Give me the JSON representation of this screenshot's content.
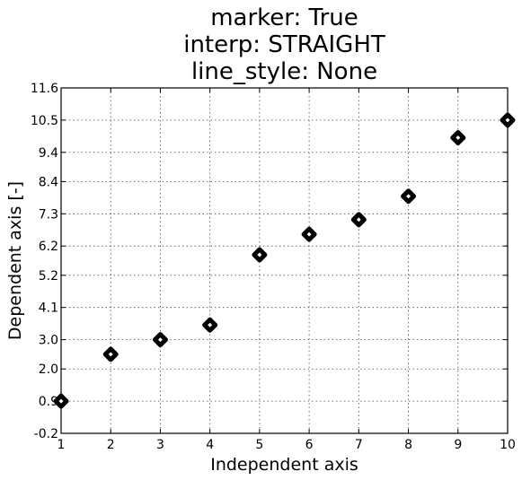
{
  "chart_data": {
    "type": "scatter",
    "title": [
      "marker: True",
      "interp: STRAIGHT",
      "line_style: None"
    ],
    "xlabel": "Independent axis",
    "ylabel": "Dependent axis [-]",
    "xlim": [
      1,
      10
    ],
    "ylim": [
      -0.2,
      11.6
    ],
    "x_ticks": [
      "1",
      "2",
      "3",
      "4",
      "5",
      "6",
      "7",
      "8",
      "9",
      "10"
    ],
    "y_ticks": [
      "-0.2",
      "0.9",
      "2.0",
      "3.0",
      "4.1",
      "5.2",
      "6.2",
      "7.3",
      "8.4",
      "9.4",
      "10.5",
      "11.6"
    ],
    "grid": true,
    "marker_color": "#000000",
    "series": [
      {
        "x": [
          1,
          2,
          3,
          4,
          5,
          6,
          7,
          8,
          9,
          10
        ],
        "y": [
          0.9,
          2.5,
          3.0,
          3.5,
          5.9,
          6.6,
          7.1,
          7.9,
          9.9,
          10.5
        ]
      }
    ]
  }
}
